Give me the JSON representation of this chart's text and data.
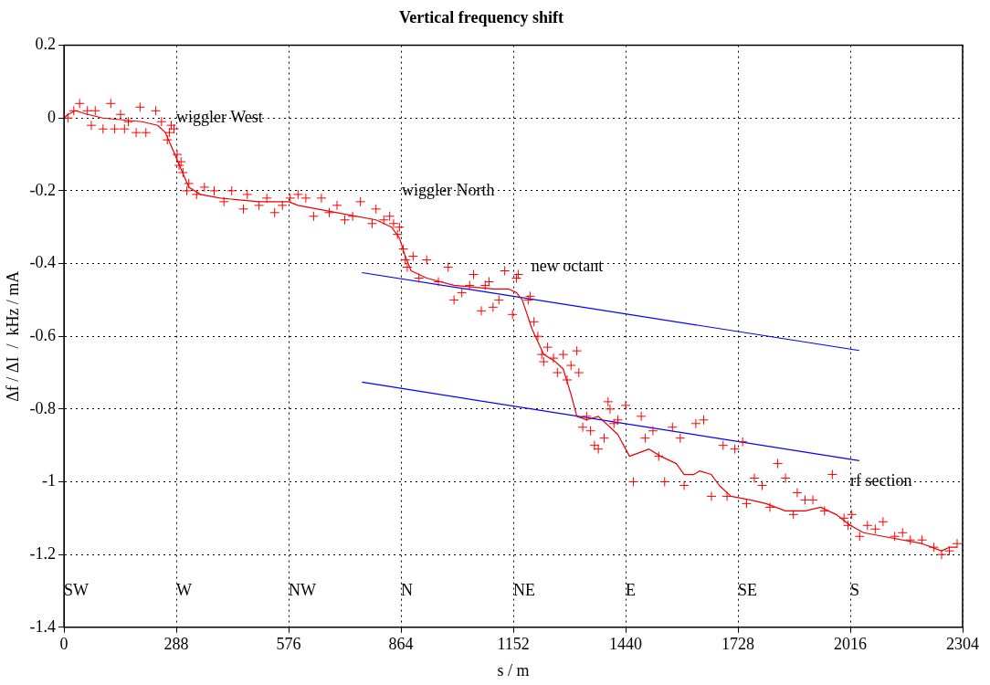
{
  "chart_data": {
    "type": "scatter",
    "title": "Vertical frequency shift",
    "xlabel": "s / m",
    "ylabel": "Δf / ΔI  /  kHz / mA",
    "xlim": [
      0,
      2304
    ],
    "xticks": [
      0,
      288,
      576,
      864,
      1152,
      1440,
      1728,
      2016,
      2304
    ],
    "ylim": [
      -1.4,
      0.2
    ],
    "yticks": [
      -1.4,
      -1.2,
      -1,
      -0.8,
      -0.6,
      -0.4,
      -0.2,
      0,
      0.2
    ],
    "grid": true,
    "legend": false,
    "series": [
      {
        "marker": "cross",
        "color": "#ff0000",
        "x": [
          10,
          25,
          40,
          60,
          70,
          80,
          100,
          120,
          130,
          145,
          155,
          165,
          185,
          195,
          210,
          235,
          250,
          265,
          270,
          275,
          282,
          290,
          295,
          300,
          305,
          315,
          320,
          340,
          360,
          385,
          410,
          430,
          460,
          470,
          500,
          520,
          540,
          560,
          580,
          600,
          620,
          640,
          660,
          680,
          700,
          720,
          740,
          760,
          790,
          800,
          820,
          835,
          845,
          855,
          860,
          870,
          875,
          880,
          895,
          910,
          930,
          960,
          985,
          1000,
          1020,
          1040,
          1050,
          1070,
          1080,
          1090,
          1100,
          1115,
          1130,
          1150,
          1160,
          1165,
          1190,
          1195,
          1205,
          1215,
          1225,
          1230,
          1240,
          1255,
          1265,
          1280,
          1290,
          1300,
          1315,
          1320,
          1330,
          1340,
          1350,
          1360,
          1370,
          1385,
          1395,
          1400,
          1410,
          1420,
          1440,
          1460,
          1480,
          1490,
          1510,
          1525,
          1540,
          1560,
          1580,
          1590,
          1620,
          1640,
          1660,
          1690,
          1700,
          1720,
          1740,
          1750,
          1770,
          1790,
          1810,
          1830,
          1850,
          1870,
          1880,
          1900,
          1920,
          1950,
          1970,
          2000,
          2010,
          2020,
          2040,
          2060,
          2080,
          2100,
          2130,
          2150,
          2170,
          2200,
          2230,
          2250,
          2270,
          2290
        ],
        "values": [
          0,
          0.02,
          0.04,
          0.02,
          -0.02,
          0.02,
          -0.03,
          0.04,
          -0.03,
          0.01,
          -0.03,
          -0.01,
          -0.04,
          0.03,
          -0.04,
          0.02,
          -0.01,
          -0.06,
          -0.04,
          -0.02,
          -0.03,
          -0.1,
          -0.13,
          -0.12,
          -0.15,
          -0.2,
          -0.18,
          -0.21,
          -0.19,
          -0.2,
          -0.23,
          -0.2,
          -0.25,
          -0.21,
          -0.24,
          -0.22,
          -0.26,
          -0.24,
          -0.22,
          -0.21,
          -0.22,
          -0.27,
          -0.22,
          -0.26,
          -0.24,
          -0.28,
          -0.27,
          -0.23,
          -0.29,
          -0.25,
          -0.28,
          -0.27,
          -0.29,
          -0.32,
          -0.3,
          -0.36,
          -0.39,
          -0.41,
          -0.38,
          -0.44,
          -0.39,
          -0.45,
          -0.41,
          -0.5,
          -0.48,
          -0.46,
          -0.43,
          -0.53,
          -0.46,
          -0.45,
          -0.52,
          -0.5,
          -0.42,
          -0.54,
          -0.44,
          -0.43,
          -0.5,
          -0.49,
          -0.56,
          -0.6,
          -0.65,
          -0.67,
          -0.63,
          -0.66,
          -0.7,
          -0.65,
          -0.72,
          -0.68,
          -0.64,
          -0.7,
          -0.85,
          -0.82,
          -0.86,
          -0.9,
          -0.91,
          -0.88,
          -0.78,
          -0.8,
          -0.84,
          -0.83,
          -0.79,
          -1,
          -0.82,
          -0.88,
          -0.86,
          -0.93,
          -1,
          -0.85,
          -0.88,
          -1.01,
          -0.84,
          -0.83,
          -1.04,
          -0.9,
          -1.04,
          -0.91,
          -0.89,
          -1.06,
          -0.99,
          -1.01,
          -1.07,
          -0.95,
          -0.99,
          -1.09,
          -1.03,
          -1.05,
          -1.05,
          -1.08,
          -0.98,
          -1.1,
          -1.12,
          -1.09,
          -1.15,
          -1.12,
          -1.13,
          -1.11,
          -1.15,
          -1.14,
          -1.16,
          -1.16,
          -1.18,
          -1.2,
          -1.19,
          -1.17
        ]
      },
      {
        "type": "line",
        "color": "#e80000",
        "line_style": "solid",
        "x": [
          0,
          10,
          30,
          60,
          100,
          200,
          240,
          260,
          280,
          300,
          320,
          350,
          400,
          500,
          576,
          600,
          700,
          800,
          840,
          860,
          875,
          890,
          930,
          1000,
          1100,
          1140,
          1160,
          1175,
          1200,
          1230,
          1260,
          1280,
          1300,
          1315,
          1340,
          1370,
          1390,
          1420,
          1450,
          1500,
          1530,
          1570,
          1590,
          1615,
          1630,
          1660,
          1680,
          1710,
          1760,
          1800,
          1850,
          1900,
          1940,
          1980,
          2016,
          2050,
          2100,
          2200,
          2250,
          2270,
          2290
        ],
        "values": [
          0,
          0.01,
          0.02,
          0.01,
          0,
          -0.01,
          -0.02,
          -0.04,
          -0.09,
          -0.14,
          -0.19,
          -0.21,
          -0.22,
          -0.23,
          -0.23,
          -0.24,
          -0.26,
          -0.28,
          -0.3,
          -0.33,
          -0.38,
          -0.42,
          -0.44,
          -0.46,
          -0.47,
          -0.47,
          -0.48,
          -0.5,
          -0.58,
          -0.65,
          -0.67,
          -0.69,
          -0.76,
          -0.82,
          -0.83,
          -0.82,
          -0.84,
          -0.87,
          -0.93,
          -0.91,
          -0.93,
          -0.95,
          -0.98,
          -0.98,
          -0.97,
          -0.98,
          -1.01,
          -1.04,
          -1.05,
          -1.06,
          -1.08,
          -1.08,
          -1.07,
          -1.09,
          -1.12,
          -1.14,
          -1.15,
          -1.17,
          -1.19,
          -1.18,
          -1.18
        ]
      },
      {
        "type": "line",
        "color": "#0000ff",
        "line_style": "solid",
        "x": [
          764,
          2039
        ],
        "values": [
          -0.425,
          -0.639
        ]
      },
      {
        "type": "line",
        "color": "#0000ff",
        "line_style": "solid",
        "x": [
          764,
          2039
        ],
        "values": [
          -0.726,
          -0.942
        ]
      }
    ],
    "annotations": [
      "wiggler West",
      "wiggler North",
      "new octant",
      "rf section",
      "SW",
      "W",
      "NW",
      "N",
      "NE",
      "E",
      "SE",
      "S"
    ]
  }
}
